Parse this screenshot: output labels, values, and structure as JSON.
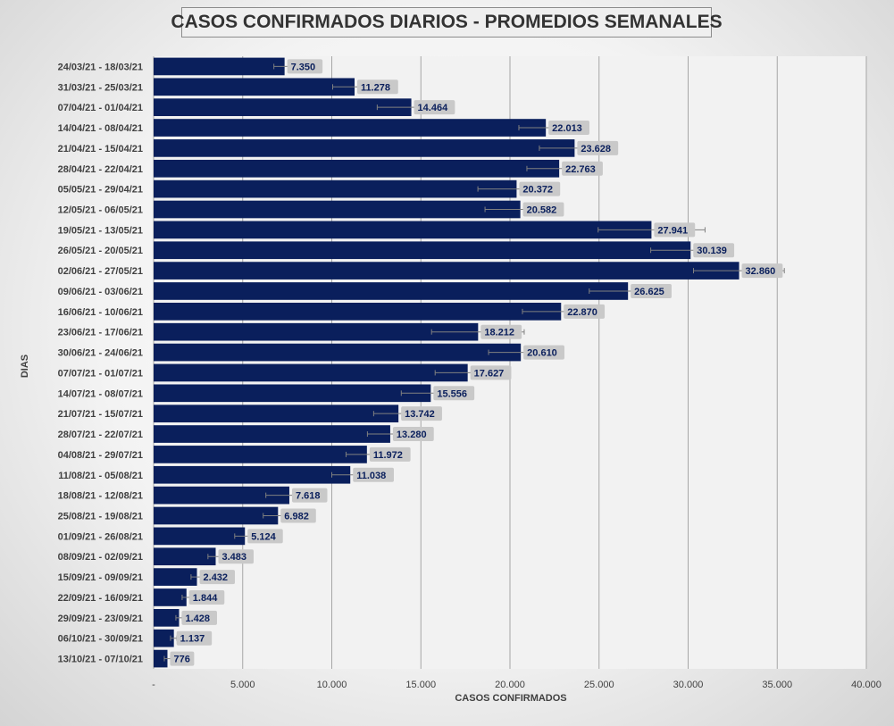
{
  "chart_data": {
    "type": "bar",
    "orientation": "horizontal",
    "title": "CASOS CONFIRMADOS DIARIOS - PROMEDIOS SEMANALES",
    "xlabel": "CASOS CONFIRMADOS",
    "ylabel": "DIAS",
    "xlim": [
      0,
      40000
    ],
    "x_ticks": [
      "-",
      "5.000",
      "10.000",
      "15.000",
      "20.000",
      "25.000",
      "30.000",
      "35.000",
      "40.000"
    ],
    "grid": true,
    "legend": "none",
    "bar_color": "#0a1f5c",
    "label_bg": "#c9c9c9",
    "label_color": "#0a1f5c",
    "error_bar_color": "#808080",
    "categories": [
      "24/03/21 - 18/03/21",
      "31/03/21 - 25/03/21",
      "07/04/21 - 01/04/21",
      "14/04/21 - 08/04/21",
      "21/04/21 - 15/04/21",
      "28/04/21 - 22/04/21",
      "05/05/21 - 29/04/21",
      "12/05/21 - 06/05/21",
      "19/05/21 - 13/05/21",
      "26/05/21 - 20/05/21",
      "02/06/21 - 27/05/21",
      "09/06/21 - 03/06/21",
      "16/06/21 - 10/06/21",
      "23/06/21 - 17/06/21",
      "30/06/21 - 24/06/21",
      "07/07/21 - 01/07/21",
      "14/07/21 - 08/07/21",
      "21/07/21 - 15/07/21",
      "28/07/21 - 22/07/21",
      "04/08/21 - 29/07/21",
      "11/08/21 - 05/08/21",
      "18/08/21 - 12/08/21",
      "25/08/21 - 19/08/21",
      "01/09/21 - 26/08/21",
      "08/09/21 - 02/09/21",
      "15/09/21 - 09/09/21",
      "22/09/21 - 16/09/21",
      "29/09/21 - 23/09/21",
      "06/10/21 - 30/09/21",
      "13/10/21 - 07/10/21"
    ],
    "values": [
      7350,
      11278,
      14464,
      22013,
      23628,
      22763,
      20372,
      20582,
      27941,
      30139,
      32860,
      26625,
      22870,
      18212,
      20610,
      17627,
      15556,
      13742,
      13280,
      11972,
      11038,
      7618,
      6982,
      5124,
      3483,
      2432,
      1844,
      1428,
      1137,
      776
    ],
    "value_labels": [
      "7.350",
      "11.278",
      "14.464",
      "22.013",
      "23.628",
      "22.763",
      "20.372",
      "20.582",
      "27.941",
      "30.139",
      "32.860",
      "26.625",
      "22.870",
      "18.212",
      "20.610",
      "17.627",
      "15.556",
      "13.742",
      "13.280",
      "11.972",
      "11.038",
      "7.618",
      "6.982",
      "5.124",
      "3.483",
      "2.432",
      "1.844",
      "1.428",
      "1.137",
      "776"
    ],
    "error_bars": [
      [
        6750,
        7950
      ],
      [
        10050,
        12450
      ],
      [
        12550,
        16200
      ],
      [
        20500,
        23600
      ],
      [
        21650,
        25550
      ],
      [
        20950,
        24300
      ],
      [
        18200,
        22600
      ],
      [
        18600,
        22400
      ],
      [
        24950,
        30950
      ],
      [
        27900,
        32400
      ],
      [
        30300,
        35400
      ],
      [
        24450,
        28800
      ],
      [
        20700,
        24950
      ],
      [
        15600,
        20800
      ],
      [
        18800,
        22400
      ],
      [
        15800,
        19300
      ],
      [
        13900,
        17200
      ],
      [
        12350,
        15150
      ],
      [
        12000,
        14500
      ],
      [
        10800,
        13100
      ],
      [
        10000,
        12100
      ],
      [
        6300,
        8950
      ],
      [
        6150,
        7800
      ],
      [
        4550,
        5700
      ],
      [
        3050,
        3900
      ],
      [
        2100,
        2750
      ],
      [
        1600,
        2050
      ],
      [
        1250,
        1600
      ],
      [
        950,
        1300
      ],
      [
        600,
        950
      ]
    ]
  }
}
